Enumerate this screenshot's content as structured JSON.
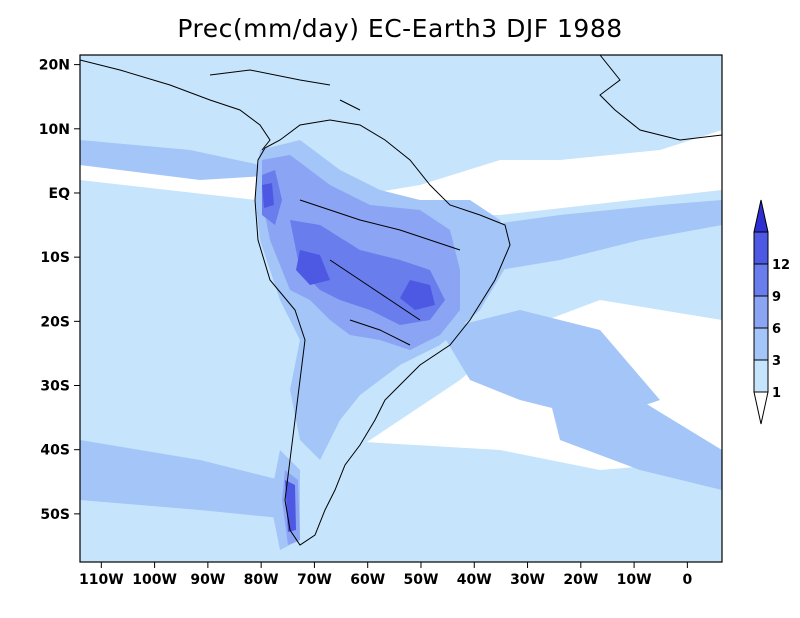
{
  "title": "Prec(mm/day) EC-Earth3 DJF 1988",
  "map": {
    "projection": "lat-lon",
    "lon_range": [
      -114,
      6.5
    ],
    "lat_range": [
      -57.5,
      21.5
    ],
    "background_color": "#ffffff",
    "coastline_color": "#000000"
  },
  "axes": {
    "x_ticks": [
      {
        "value": -110,
        "label": "110W"
      },
      {
        "value": -100,
        "label": "100W"
      },
      {
        "value": -90,
        "label": "90W"
      },
      {
        "value": -80,
        "label": "80W"
      },
      {
        "value": -70,
        "label": "70W"
      },
      {
        "value": -60,
        "label": "60W"
      },
      {
        "value": -50,
        "label": "50W"
      },
      {
        "value": -40,
        "label": "40W"
      },
      {
        "value": -30,
        "label": "30W"
      },
      {
        "value": -20,
        "label": "20W"
      },
      {
        "value": -10,
        "label": "10W"
      },
      {
        "value": 0,
        "label": "0"
      }
    ],
    "y_ticks": [
      {
        "value": 20,
        "label": "20N"
      },
      {
        "value": 10,
        "label": "10N"
      },
      {
        "value": 0,
        "label": "EQ"
      },
      {
        "value": -10,
        "label": "10S"
      },
      {
        "value": -20,
        "label": "20S"
      },
      {
        "value": -30,
        "label": "30S"
      },
      {
        "value": -40,
        "label": "40S"
      },
      {
        "value": -50,
        "label": "50S"
      }
    ]
  },
  "colorbar": {
    "levels": [
      "1",
      "3",
      "6",
      "9",
      "12"
    ],
    "colors": [
      "#ffffff",
      "#c6e4fb",
      "#a3c5f7",
      "#8ba4f3",
      "#6a7ded",
      "#4d58e3",
      "#2d2fd2"
    ]
  }
}
